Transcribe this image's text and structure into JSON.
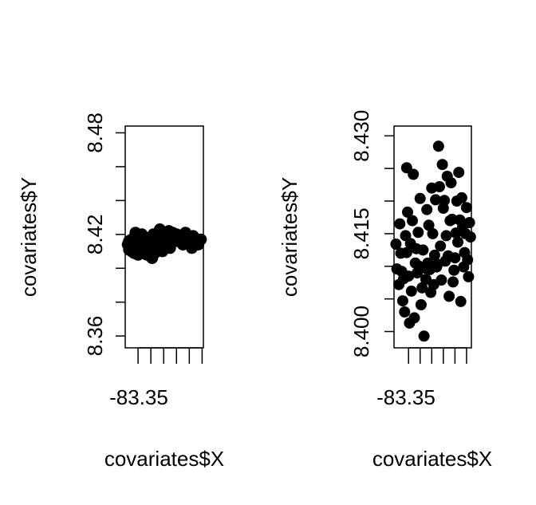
{
  "chart_data": [
    {
      "type": "scatter",
      "title": "",
      "xlabel": "covariates$X",
      "ylabel": "covariates$Y",
      "x_tick_labels": [
        "-83.35"
      ],
      "y_tick_labels": [
        "8.36",
        "8.42",
        "8.48"
      ],
      "xlim": [
        -83.355,
        -83.294
      ],
      "ylim": [
        8.353,
        8.484
      ],
      "x_minor_ticks": [
        -83.345,
        -83.335,
        -83.325,
        -83.315,
        -83.305,
        -83.295
      ],
      "y_ticks": [
        8.36,
        8.38,
        8.4,
        8.42,
        8.44,
        8.46,
        8.48
      ],
      "grid": false,
      "point_color": "#000000",
      "points": [
        [
          -83.353,
          8.414
        ],
        [
          -83.352,
          8.411
        ],
        [
          -83.352,
          8.416
        ],
        [
          -83.351,
          8.413
        ],
        [
          -83.35,
          8.41
        ],
        [
          -83.35,
          8.417
        ],
        [
          -83.349,
          8.415
        ],
        [
          -83.349,
          8.412
        ],
        [
          -83.348,
          8.409
        ],
        [
          -83.348,
          8.418
        ],
        [
          -83.347,
          8.421
        ],
        [
          -83.347,
          8.414
        ],
        [
          -83.346,
          8.411
        ],
        [
          -83.346,
          8.416
        ],
        [
          -83.345,
          8.413
        ],
        [
          -83.345,
          8.408
        ],
        [
          -83.344,
          8.419
        ],
        [
          -83.344,
          8.415
        ],
        [
          -83.343,
          8.411
        ],
        [
          -83.343,
          8.413
        ],
        [
          -83.342,
          8.42
        ],
        [
          -83.342,
          8.409
        ],
        [
          -83.341,
          8.416
        ],
        [
          -83.341,
          8.412
        ],
        [
          -83.34,
          8.414
        ],
        [
          -83.34,
          8.41
        ],
        [
          -83.339,
          8.417
        ],
        [
          -83.339,
          8.413
        ],
        [
          -83.338,
          8.415
        ],
        [
          -83.337,
          8.411
        ],
        [
          -83.337,
          8.418
        ],
        [
          -83.336,
          8.414
        ],
        [
          -83.335,
          8.416
        ],
        [
          -83.334,
          8.412
        ],
        [
          -83.334,
          8.406
        ],
        [
          -83.333,
          8.42
        ],
        [
          -83.332,
          8.417
        ],
        [
          -83.331,
          8.413
        ],
        [
          -83.33,
          8.415
        ],
        [
          -83.329,
          8.419
        ],
        [
          -83.328,
          8.411
        ],
        [
          -83.328,
          8.423
        ],
        [
          -83.327,
          8.416
        ],
        [
          -83.326,
          8.421
        ],
        [
          -83.325,
          8.418
        ],
        [
          -83.324,
          8.414
        ],
        [
          -83.323,
          8.42
        ],
        [
          -83.322,
          8.417
        ],
        [
          -83.321,
          8.422
        ],
        [
          -83.32,
          8.415
        ],
        [
          -83.319,
          8.419
        ],
        [
          -83.318,
          8.421
        ],
        [
          -83.317,
          8.416
        ],
        [
          -83.316,
          8.418
        ],
        [
          -83.315,
          8.42
        ],
        [
          -83.314,
          8.416
        ],
        [
          -83.313,
          8.419
        ],
        [
          -83.312,
          8.417
        ],
        [
          -83.31,
          8.414
        ],
        [
          -83.308,
          8.421
        ],
        [
          -83.306,
          8.418
        ],
        [
          -83.304,
          8.415
        ],
        [
          -83.303,
          8.412
        ],
        [
          -83.302,
          8.419
        ],
        [
          -83.3,
          8.416
        ],
        [
          -83.298,
          8.414
        ],
        [
          -83.296,
          8.417
        ],
        [
          -83.332,
          8.409
        ],
        [
          -83.338,
          8.408
        ],
        [
          -83.344,
          8.417
        ],
        [
          -83.326,
          8.41
        ],
        [
          -83.32,
          8.412
        ]
      ]
    },
    {
      "type": "scatter",
      "title": "",
      "xlabel": "covariates$X",
      "ylabel": "covariates$Y",
      "x_tick_labels": [
        "-83.35"
      ],
      "y_tick_labels": [
        "8.400",
        "8.415",
        "8.430"
      ],
      "xlim": [
        -83.3535,
        -83.3455
      ],
      "ylim": [
        8.3975,
        8.4315
      ],
      "x_minor_ticks": [
        -83.352,
        -83.3508,
        -83.3496,
        -83.3484,
        -83.3472,
        -83.346
      ],
      "y_ticks": [
        8.4,
        8.405,
        8.41,
        8.415,
        8.42,
        8.425,
        8.43
      ],
      "grid": false,
      "point_color": "#000000",
      "points": [
        [
          -83.3533,
          8.4134
        ],
        [
          -83.3532,
          8.4096
        ],
        [
          -83.353,
          8.4072
        ],
        [
          -83.3529,
          8.4165
        ],
        [
          -83.3528,
          8.412
        ],
        [
          -83.3527,
          8.4092
        ],
        [
          -83.3526,
          8.4047
        ],
        [
          -83.3525,
          8.4081
        ],
        [
          -83.3524,
          8.403
        ],
        [
          -83.3523,
          8.4147
        ],
        [
          -83.3522,
          8.4121
        ],
        [
          -83.3522,
          8.4251
        ],
        [
          -83.3521,
          8.4183
        ],
        [
          -83.352,
          8.4085
        ],
        [
          -83.3519,
          8.4013
        ],
        [
          -83.3518,
          8.4135
        ],
        [
          -83.3517,
          8.4062
        ],
        [
          -83.3516,
          8.417
        ],
        [
          -83.3515,
          8.4241
        ],
        [
          -83.3514,
          8.4021
        ],
        [
          -83.3513,
          8.4105
        ],
        [
          -83.3512,
          8.4127
        ],
        [
          -83.3511,
          8.409
        ],
        [
          -83.351,
          8.4152
        ],
        [
          -83.3509,
          8.41
        ],
        [
          -83.3508,
          8.4204
        ],
        [
          -83.3507,
          8.4041
        ],
        [
          -83.3506,
          8.4067
        ],
        [
          -83.3505,
          8.4125
        ],
        [
          -83.3504,
          8.3993
        ],
        [
          -83.3503,
          8.4097
        ],
        [
          -83.3502,
          8.408
        ],
        [
          -83.3501,
          8.4187
        ],
        [
          -83.35,
          8.4105
        ],
        [
          -83.3499,
          8.4163
        ],
        [
          -83.3498,
          8.4095
        ],
        [
          -83.3497,
          8.406
        ],
        [
          -83.3496,
          8.422
        ],
        [
          -83.3495,
          8.415
        ],
        [
          -83.3494,
          8.4072
        ],
        [
          -83.3493,
          8.4117
        ],
        [
          -83.3492,
          8.4202
        ],
        [
          -83.3491,
          8.4099
        ],
        [
          -83.349,
          8.4103
        ],
        [
          -83.3489,
          8.4284
        ],
        [
          -83.3488,
          8.4222
        ],
        [
          -83.3487,
          8.4131
        ],
        [
          -83.3486,
          8.4079
        ],
        [
          -83.3485,
          8.4256
        ],
        [
          -83.3484,
          8.4189
        ],
        [
          -83.3483,
          8.4201
        ],
        [
          -83.3482,
          8.4108
        ],
        [
          -83.3481,
          8.4147
        ],
        [
          -83.348,
          8.4238
        ],
        [
          -83.3479,
          8.4116
        ],
        [
          -83.3478,
          8.4054
        ],
        [
          -83.3477,
          8.417
        ],
        [
          -83.3476,
          8.4228
        ],
        [
          -83.3475,
          8.4172
        ],
        [
          -83.3474,
          8.4076
        ],
        [
          -83.3473,
          8.4094
        ],
        [
          -83.3472,
          8.4113
        ],
        [
          -83.3471,
          8.4151
        ],
        [
          -83.347,
          8.42
        ],
        [
          -83.3469,
          8.4137
        ],
        [
          -83.3468,
          8.4244
        ],
        [
          -83.3467,
          8.4171
        ],
        [
          -83.3466,
          8.4046
        ],
        [
          -83.3465,
          8.4205
        ],
        [
          -83.3464,
          8.4161
        ],
        [
          -83.3463,
          8.4099
        ],
        [
          -83.3462,
          8.4121
        ],
        [
          -83.3461,
          8.415
        ],
        [
          -83.346,
          8.419
        ],
        [
          -83.3459,
          8.411
        ],
        [
          -83.3458,
          8.4084
        ],
        [
          -83.3457,
          8.4167
        ],
        [
          -83.3456,
          8.4145
        ]
      ]
    }
  ]
}
